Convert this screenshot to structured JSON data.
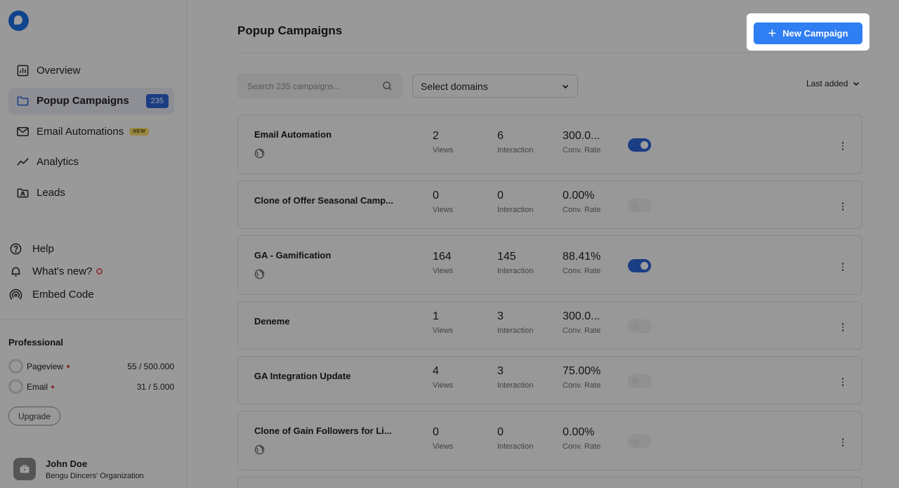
{
  "sidebar": {
    "logo_icon": "logo-icon",
    "nav": [
      {
        "label": "Overview",
        "icon": "overview-icon"
      },
      {
        "label": "Popup Campaigns",
        "icon": "folder-icon",
        "badge": "235"
      },
      {
        "label": "Email Automations",
        "icon": "email-icon",
        "tag": "NEW"
      },
      {
        "label": "Analytics",
        "icon": "analytics-icon"
      },
      {
        "label": "Leads",
        "icon": "leads-icon"
      }
    ],
    "secondary": [
      {
        "label": "Help",
        "icon": "help-icon"
      },
      {
        "label": "What's new?",
        "icon": "bell-icon"
      },
      {
        "label": "Embed Code",
        "icon": "embed-icon"
      }
    ],
    "plan": {
      "title": "Professional",
      "usage": [
        {
          "label": "Pageview",
          "value": "55 / 500.000"
        },
        {
          "label": "Email",
          "value": "31 / 5.000"
        }
      ],
      "upgrade_label": "Upgrade"
    },
    "user": {
      "name": "John Doe",
      "org": "Bengu Dincers' Organization"
    }
  },
  "main": {
    "title": "Popup Campaigns",
    "new_campaign_label": "New Campaign",
    "search_placeholder": "Search 235 campaigns...",
    "domains_label": "Select domains",
    "sort_label": "Last added",
    "campaigns": [
      {
        "name": "Email Automation",
        "views": "2",
        "views_label": "Views",
        "interaction": "6",
        "interaction_label": "Interaction",
        "conv": "300.0...",
        "conv_label": "Conv. Rate",
        "active": true,
        "globe": true
      },
      {
        "name": "Clone of Offer Seasonal Camp...",
        "views": "0",
        "views_label": "Views",
        "interaction": "0",
        "interaction_label": "Interaction",
        "conv": "0.00%",
        "conv_label": "Conv. Rate",
        "active": false,
        "globe": false
      },
      {
        "name": "GA - Gamification",
        "views": "164",
        "views_label": "Views",
        "interaction": "145",
        "interaction_label": "Interaction",
        "conv": "88.41%",
        "conv_label": "Conv. Rate",
        "active": true,
        "globe": true
      },
      {
        "name": "Deneme",
        "views": "1",
        "views_label": "Views",
        "interaction": "3",
        "interaction_label": "Interaction",
        "conv": "300.0...",
        "conv_label": "Conv. Rate",
        "active": false,
        "globe": false
      },
      {
        "name": "GA Integration Update",
        "views": "4",
        "views_label": "Views",
        "interaction": "3",
        "interaction_label": "Interaction",
        "conv": "75.00%",
        "conv_label": "Conv. Rate",
        "active": false,
        "globe": false
      },
      {
        "name": "Clone of Gain Followers for Li...",
        "views": "0",
        "views_label": "Views",
        "interaction": "0",
        "interaction_label": "Interaction",
        "conv": "0.00%",
        "conv_label": "Conv. Rate",
        "active": false,
        "globe": true
      }
    ]
  }
}
